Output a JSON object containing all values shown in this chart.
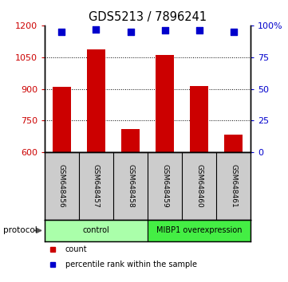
{
  "title": "GDS5213 / 7896241",
  "samples": [
    "GSM648456",
    "GSM648457",
    "GSM648458",
    "GSM648459",
    "GSM648460",
    "GSM648461"
  ],
  "counts": [
    910,
    1085,
    710,
    1060,
    915,
    685
  ],
  "percentile_ranks": [
    95,
    97,
    95,
    96,
    96,
    95
  ],
  "ylim_left": [
    600,
    1200
  ],
  "ylim_right": [
    0,
    100
  ],
  "yticks_left": [
    600,
    750,
    900,
    1050,
    1200
  ],
  "yticks_right": [
    0,
    25,
    50,
    75,
    100
  ],
  "ytick_labels_right": [
    "0",
    "25",
    "50",
    "75",
    "100%"
  ],
  "bar_color": "#cc0000",
  "scatter_color": "#0000cc",
  "bar_width": 0.55,
  "protocol_groups": [
    {
      "label": "control",
      "indices": [
        0,
        1,
        2
      ],
      "color": "#aaffaa"
    },
    {
      "label": "MIBP1 overexpression",
      "indices": [
        3,
        4,
        5
      ],
      "color": "#44ee44"
    }
  ],
  "legend_count_label": "count",
  "legend_pct_label": "percentile rank within the sample",
  "legend_count_color": "#cc0000",
  "legend_pct_color": "#0000cc",
  "bg_samples": "#cccccc",
  "title_fontsize": 10.5,
  "sample_fontsize": 6.5,
  "axis_fontsize": 8
}
